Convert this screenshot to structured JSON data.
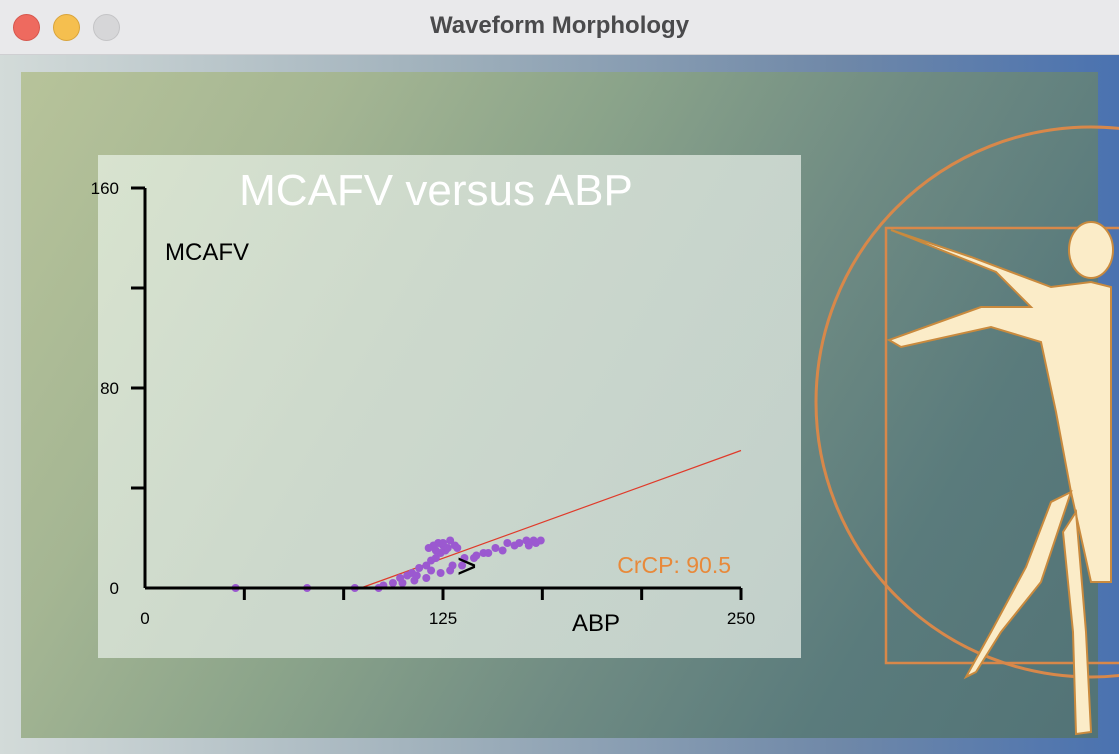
{
  "window": {
    "title": "Waveform Morphology"
  },
  "colors": {
    "data_points": "#9b59d0",
    "fit_line": "#e03a2a",
    "crcp_text": "#e8893a",
    "axis": "#000000",
    "title_text": "#ffffff"
  },
  "chart_data": {
    "type": "scatter",
    "title": "MCAFV versus ABP",
    "xlabel": "ABP",
    "ylabel": "MCAFV",
    "xlim": [
      0,
      250
    ],
    "ylim": [
      0,
      160
    ],
    "xticks": [
      0,
      125,
      250
    ],
    "yticks": [
      0,
      80,
      160
    ],
    "annotation": "CrCP: 90.5",
    "crcp": 90.5,
    "fit_line": {
      "x": [
        90.5,
        250
      ],
      "y": [
        0,
        55
      ]
    },
    "arrow_marker": ">",
    "arrow_at": {
      "x": 135,
      "y": 9
    },
    "series": [
      {
        "points": [
          [
            38,
            0
          ],
          [
            68,
            0
          ],
          [
            88,
            0
          ],
          [
            98,
            0
          ],
          [
            100,
            1
          ],
          [
            104,
            2
          ],
          [
            107,
            4
          ],
          [
            110,
            5
          ],
          [
            112,
            6
          ],
          [
            115,
            8
          ],
          [
            118,
            9
          ],
          [
            120,
            11
          ],
          [
            122,
            12
          ],
          [
            124,
            14
          ],
          [
            126,
            15
          ],
          [
            127,
            16
          ],
          [
            125,
            17
          ],
          [
            123,
            18
          ],
          [
            121,
            17
          ],
          [
            119,
            16
          ],
          [
            122,
            15
          ],
          [
            125,
            18
          ],
          [
            128,
            19
          ],
          [
            130,
            17
          ],
          [
            131,
            16
          ],
          [
            108,
            2
          ],
          [
            113,
            3
          ],
          [
            118,
            4
          ],
          [
            124,
            6
          ],
          [
            128,
            7
          ],
          [
            133,
            9
          ],
          [
            138,
            12
          ],
          [
            142,
            14
          ],
          [
            147,
            16
          ],
          [
            152,
            18
          ],
          [
            157,
            18
          ],
          [
            160,
            19
          ],
          [
            163,
            19
          ],
          [
            166,
            19
          ],
          [
            164,
            18
          ],
          [
            161,
            17
          ],
          [
            155,
            17
          ],
          [
            150,
            15
          ],
          [
            144,
            14
          ],
          [
            139,
            13
          ],
          [
            134,
            12
          ],
          [
            129,
            9
          ],
          [
            120,
            7
          ],
          [
            114,
            5
          ]
        ]
      }
    ]
  }
}
